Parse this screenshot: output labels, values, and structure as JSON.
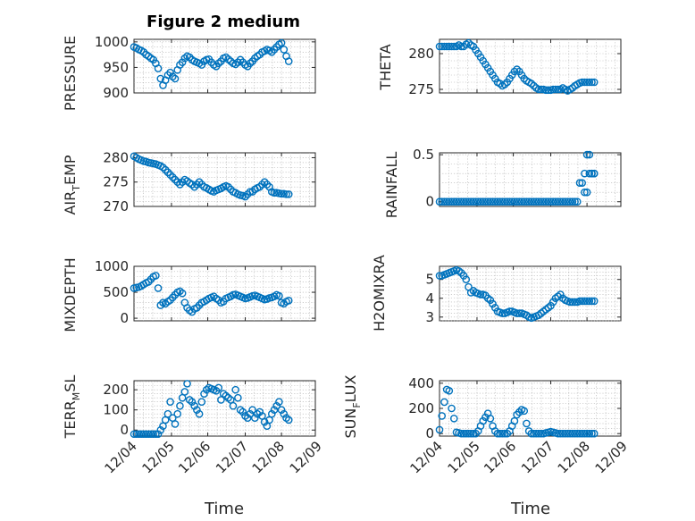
{
  "figure": {
    "title": "Figure 2 medium",
    "marker_color": "#0072bd"
  },
  "chart_data": [
    {
      "type": "scatter",
      "id": "pressure",
      "title": "Figure 2 medium",
      "ylabel": "PRESSURE",
      "ylim": [
        900,
        1005
      ],
      "yticks": [
        900,
        950,
        1000
      ],
      "ytick_labels": [
        "900",
        "950",
        "1000"
      ],
      "xlim": [
        0,
        150
      ],
      "x": [
        0,
        2,
        4,
        6,
        8,
        10,
        12,
        14,
        16,
        18,
        20,
        22,
        24,
        26,
        28,
        30,
        32,
        34,
        36,
        38,
        40,
        42,
        44,
        46,
        48,
        50,
        52,
        54,
        56,
        58,
        60,
        62,
        64,
        66,
        68,
        70,
        72,
        74,
        76,
        78,
        80,
        82,
        84,
        86,
        88,
        90,
        92,
        94,
        96,
        98,
        100,
        102,
        104,
        106,
        108,
        110,
        112,
        114,
        116,
        118,
        120,
        122,
        124,
        126,
        128
      ],
      "y": [
        990,
        988,
        985,
        983,
        980,
        975,
        972,
        968,
        965,
        958,
        948,
        928,
        915,
        925,
        935,
        940,
        932,
        928,
        945,
        955,
        960,
        968,
        972,
        970,
        965,
        962,
        960,
        958,
        955,
        962,
        965,
        966,
        960,
        955,
        952,
        958,
        962,
        968,
        970,
        966,
        962,
        958,
        956,
        960,
        965,
        960,
        955,
        952,
        958,
        962,
        968,
        972,
        975,
        980,
        982,
        985,
        983,
        980,
        985,
        990,
        995,
        998,
        985,
        972,
        962
      ]
    },
    {
      "type": "scatter",
      "id": "theta",
      "ylabel": "THETA",
      "ylim": [
        274.5,
        282
      ],
      "yticks": [
        275,
        280
      ],
      "ytick_labels": [
        "275",
        "280"
      ],
      "xlim": [
        0,
        150
      ],
      "x": [
        0,
        2,
        4,
        6,
        8,
        10,
        12,
        14,
        16,
        18,
        20,
        22,
        24,
        26,
        28,
        30,
        32,
        34,
        36,
        38,
        40,
        42,
        44,
        46,
        48,
        50,
        52,
        54,
        56,
        58,
        60,
        62,
        64,
        66,
        68,
        70,
        72,
        74,
        76,
        78,
        80,
        82,
        84,
        86,
        88,
        90,
        92,
        94,
        96,
        98,
        100,
        102,
        104,
        106,
        108,
        110,
        112,
        114,
        116,
        118,
        120,
        122,
        124,
        126,
        128
      ],
      "y": [
        281,
        281,
        281,
        281,
        281,
        281,
        281,
        281,
        281.2,
        281,
        281,
        281.3,
        281.5,
        281.2,
        281,
        280.5,
        280,
        279.5,
        279,
        278.5,
        278,
        277.5,
        277,
        276.5,
        276,
        275.8,
        275.5,
        275.7,
        276,
        276.5,
        277,
        277.5,
        277.8,
        277.5,
        277,
        276.5,
        276.2,
        276,
        275.8,
        275.5,
        275.2,
        275,
        275,
        275,
        274.9,
        274.9,
        274.9,
        275,
        275,
        275,
        275,
        275.2,
        275,
        274.8,
        275,
        275.2,
        275.5,
        275.7,
        275.9,
        276,
        276,
        276,
        276,
        276,
        276
      ]
    },
    {
      "type": "scatter",
      "id": "airtemp",
      "ylabel": "AIR_TEMP",
      "ylim": [
        270,
        281
      ],
      "yticks": [
        270,
        275,
        280
      ],
      "ytick_labels": [
        "270",
        "275",
        "280"
      ],
      "xlim": [
        0,
        150
      ],
      "x": [
        0,
        2,
        4,
        6,
        8,
        10,
        12,
        14,
        16,
        18,
        20,
        22,
        24,
        26,
        28,
        30,
        32,
        34,
        36,
        38,
        40,
        42,
        44,
        46,
        48,
        50,
        52,
        54,
        56,
        58,
        60,
        62,
        64,
        66,
        68,
        70,
        72,
        74,
        76,
        78,
        80,
        82,
        84,
        86,
        88,
        90,
        92,
        94,
        96,
        98,
        100,
        102,
        104,
        106,
        108,
        110,
        112,
        114,
        116,
        118,
        120,
        122,
        124,
        126,
        128
      ],
      "y": [
        280.3,
        280,
        279.7,
        279.5,
        279.3,
        279.2,
        279,
        278.9,
        278.8,
        278.7,
        278.5,
        278.3,
        278,
        277.5,
        277,
        276.5,
        276,
        275.5,
        275,
        274.5,
        275,
        275.5,
        275.2,
        274.8,
        274.5,
        274,
        274.5,
        275,
        274.5,
        274,
        273.8,
        273.5,
        273.2,
        273,
        273.3,
        273.5,
        273.7,
        274,
        274.2,
        274,
        273.5,
        273,
        272.8,
        272.5,
        272.3,
        272.2,
        272,
        272.5,
        273,
        273,
        273.5,
        273.8,
        274,
        274.5,
        275,
        274.5,
        274,
        273,
        272.8,
        272.8,
        272.7,
        272.6,
        272.6,
        272.5,
        272.5
      ]
    },
    {
      "type": "scatter",
      "id": "rainfall",
      "ylabel": "RAINFALL",
      "ylim": [
        -0.05,
        0.52
      ],
      "yticks": [
        0,
        0.5
      ],
      "ytick_labels": [
        "0",
        "0.5"
      ],
      "xlim": [
        0,
        150
      ],
      "x": [
        0,
        2,
        4,
        6,
        8,
        10,
        12,
        14,
        16,
        18,
        20,
        22,
        24,
        26,
        28,
        30,
        32,
        34,
        36,
        38,
        40,
        42,
        44,
        46,
        48,
        50,
        52,
        54,
        56,
        58,
        60,
        62,
        64,
        66,
        68,
        70,
        72,
        74,
        76,
        78,
        80,
        82,
        84,
        86,
        88,
        90,
        92,
        94,
        96,
        98,
        100,
        102,
        104,
        106,
        108,
        110,
        112,
        114,
        116,
        118,
        120,
        122,
        124,
        126,
        128,
        124,
        126,
        128,
        120,
        122
      ],
      "y": [
        0,
        0,
        0,
        0,
        0,
        0,
        0,
        0,
        0,
        0,
        0,
        0,
        0,
        0,
        0,
        0,
        0,
        0,
        0,
        0,
        0,
        0,
        0,
        0,
        0,
        0,
        0,
        0,
        0,
        0,
        0,
        0,
        0,
        0,
        0,
        0,
        0,
        0,
        0,
        0,
        0,
        0,
        0,
        0,
        0,
        0,
        0,
        0,
        0,
        0,
        0,
        0,
        0,
        0,
        0,
        0,
        0,
        0,
        0.2,
        0.2,
        0.3,
        0.5,
        0.5,
        0.3,
        0.3,
        0.3,
        0.3,
        0.3,
        0.1,
        0.1
      ]
    },
    {
      "type": "scatter",
      "id": "mixdepth",
      "ylabel": "MIXDEPTH",
      "ylim": [
        -50,
        1000
      ],
      "yticks": [
        0,
        500,
        1000
      ],
      "ytick_labels": [
        "0",
        "500",
        "1000"
      ],
      "xlim": [
        0,
        150
      ],
      "x": [
        0,
        2,
        4,
        6,
        8,
        10,
        12,
        14,
        16,
        18,
        20,
        22,
        24,
        26,
        28,
        30,
        32,
        34,
        36,
        38,
        40,
        42,
        44,
        46,
        48,
        50,
        52,
        54,
        56,
        58,
        60,
        62,
        64,
        66,
        68,
        70,
        72,
        74,
        76,
        78,
        80,
        82,
        84,
        86,
        88,
        90,
        92,
        94,
        96,
        98,
        100,
        102,
        104,
        106,
        108,
        110,
        112,
        114,
        116,
        118,
        120,
        122,
        124,
        126,
        128
      ],
      "y": [
        580,
        590,
        600,
        620,
        650,
        680,
        700,
        750,
        800,
        820,
        580,
        250,
        300,
        280,
        320,
        350,
        400,
        450,
        500,
        520,
        480,
        300,
        200,
        150,
        120,
        180,
        200,
        250,
        300,
        320,
        350,
        380,
        400,
        420,
        380,
        350,
        300,
        320,
        380,
        400,
        420,
        450,
        460,
        440,
        420,
        400,
        380,
        390,
        410,
        430,
        440,
        420,
        400,
        380,
        360,
        370,
        390,
        400,
        420,
        450,
        430,
        300,
        280,
        320,
        340
      ]
    },
    {
      "type": "scatter",
      "id": "h2omixra",
      "ylabel": "H2OMIXRA",
      "ylim": [
        2.8,
        5.7
      ],
      "yticks": [
        3,
        4,
        5
      ],
      "ytick_labels": [
        "3",
        "4",
        "5"
      ],
      "xlim": [
        0,
        150
      ],
      "x": [
        0,
        2,
        4,
        6,
        8,
        10,
        12,
        14,
        16,
        18,
        20,
        22,
        24,
        26,
        28,
        30,
        32,
        34,
        36,
        38,
        40,
        42,
        44,
        46,
        48,
        50,
        52,
        54,
        56,
        58,
        60,
        62,
        64,
        66,
        68,
        70,
        72,
        74,
        76,
        78,
        80,
        82,
        84,
        86,
        88,
        90,
        92,
        94,
        96,
        98,
        100,
        102,
        104,
        106,
        108,
        110,
        112,
        114,
        116,
        118,
        120,
        122,
        124,
        126,
        128
      ],
      "y": [
        5.2,
        5.2,
        5.25,
        5.3,
        5.35,
        5.4,
        5.45,
        5.5,
        5.45,
        5.35,
        5.2,
        5,
        4.6,
        4.3,
        4.4,
        4.3,
        4.25,
        4.2,
        4.2,
        4.15,
        4,
        3.9,
        3.7,
        3.5,
        3.3,
        3.25,
        3.2,
        3.2,
        3.25,
        3.3,
        3.3,
        3.25,
        3.2,
        3.2,
        3.2,
        3.15,
        3.1,
        3,
        2.95,
        3,
        3.05,
        3.1,
        3.2,
        3.3,
        3.4,
        3.5,
        3.6,
        3.8,
        4,
        4.1,
        4.2,
        4,
        3.9,
        3.85,
        3.8,
        3.8,
        3.8,
        3.8,
        3.85,
        3.85,
        3.85,
        3.85,
        3.85,
        3.85,
        3.85
      ]
    },
    {
      "type": "scatter",
      "id": "terrmsl",
      "ylabel": "TERR_MSL",
      "ylim": [
        -30,
        245
      ],
      "yticks": [
        0,
        100,
        200
      ],
      "ytick_labels": [
        "0",
        "100",
        "200"
      ],
      "xlim": [
        0,
        150
      ],
      "x": [
        0,
        2,
        4,
        6,
        8,
        10,
        12,
        14,
        16,
        18,
        20,
        22,
        24,
        26,
        28,
        30,
        32,
        34,
        36,
        38,
        40,
        42,
        44,
        46,
        48,
        50,
        52,
        54,
        56,
        58,
        60,
        62,
        64,
        66,
        68,
        70,
        72,
        74,
        76,
        78,
        80,
        82,
        84,
        86,
        88,
        90,
        92,
        94,
        96,
        98,
        100,
        102,
        104,
        106,
        108,
        110,
        112,
        114,
        116,
        118,
        120,
        122,
        124,
        126,
        128
      ],
      "y": [
        -20,
        -20,
        -20,
        -20,
        -20,
        -20,
        -20,
        -20,
        -20,
        -20,
        -20,
        0,
        20,
        50,
        80,
        140,
        60,
        30,
        80,
        120,
        160,
        190,
        230,
        150,
        140,
        120,
        100,
        80,
        140,
        180,
        200,
        210,
        205,
        200,
        195,
        210,
        150,
        180,
        170,
        160,
        150,
        120,
        200,
        160,
        100,
        90,
        70,
        60,
        80,
        100,
        60,
        80,
        90,
        70,
        40,
        20,
        50,
        80,
        100,
        120,
        140,
        100,
        80,
        60,
        50
      ]
    },
    {
      "type": "scatter",
      "id": "sunflux",
      "ylabel": "SUN_FLUX",
      "ylim": [
        -20,
        420
      ],
      "yticks": [
        0,
        200,
        400
      ],
      "ytick_labels": [
        "0",
        "200",
        "400"
      ],
      "xlim": [
        0,
        150
      ],
      "x": [
        0,
        2,
        4,
        6,
        8,
        10,
        12,
        14,
        16,
        18,
        20,
        22,
        24,
        26,
        28,
        30,
        32,
        34,
        36,
        38,
        40,
        42,
        44,
        46,
        48,
        50,
        52,
        54,
        56,
        58,
        60,
        62,
        64,
        66,
        68,
        70,
        72,
        74,
        76,
        78,
        80,
        82,
        84,
        86,
        88,
        90,
        92,
        94,
        96,
        98,
        100,
        102,
        104,
        106,
        108,
        110,
        112,
        114,
        116,
        118,
        120,
        122,
        124,
        126,
        128
      ],
      "y": [
        30,
        140,
        250,
        350,
        340,
        200,
        120,
        10,
        5,
        0,
        0,
        0,
        0,
        0,
        0,
        0,
        20,
        60,
        100,
        130,
        160,
        120,
        60,
        20,
        0,
        0,
        0,
        0,
        0,
        20,
        60,
        100,
        150,
        170,
        190,
        180,
        80,
        20,
        0,
        0,
        0,
        0,
        0,
        0,
        5,
        10,
        15,
        10,
        5,
        0,
        0,
        0,
        0,
        0,
        0,
        0,
        0,
        0,
        0,
        0,
        0,
        0,
        0,
        0,
        0
      ]
    }
  ],
  "xaxis": {
    "xlim": [
      0,
      150
    ],
    "ticks": [
      0,
      31,
      61,
      92,
      122,
      153
    ],
    "tick_labels": [
      "12/04",
      "12/05",
      "12/06",
      "12/07",
      "12/08",
      "12/09"
    ],
    "xlabel": "Time"
  },
  "ylabels": {
    "pressure": "PRESSURE",
    "theta": "THETA",
    "airtemp_main": "AIR",
    "airtemp_sub": "T",
    "airtemp_tail": "EMP",
    "rainfall": "RAINFALL",
    "mixdepth": "MIXDEPTH",
    "h2omixra": "H2OMIXRA",
    "terr_main": "TERR",
    "terr_sub": "M",
    "terr_tail": "SL",
    "sun_main": "SUN",
    "sun_sub": "F",
    "sun_tail": "LUX"
  }
}
